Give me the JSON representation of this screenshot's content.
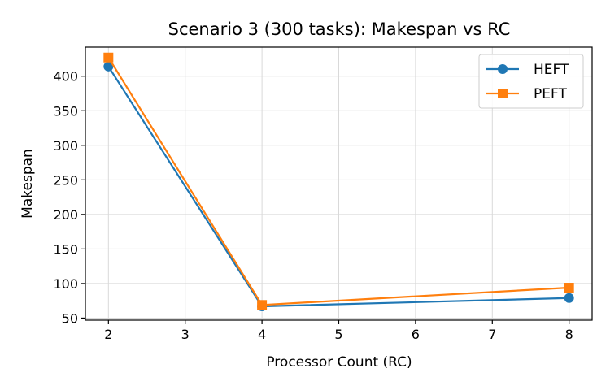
{
  "chart_data": {
    "type": "line",
    "title": "Scenario 3 (300 tasks): Makespan vs RC",
    "xlabel": "Processor Count (RC)",
    "ylabel": "Makespan",
    "xlim": [
      1.7,
      8.3
    ],
    "ylim": [
      47,
      442
    ],
    "xticks": [
      2,
      3,
      4,
      5,
      6,
      7,
      8
    ],
    "yticks": [
      50,
      100,
      150,
      200,
      250,
      300,
      350,
      400
    ],
    "grid": true,
    "legend_position": "top-right",
    "x": [
      2,
      4,
      8
    ],
    "series": [
      {
        "name": "HEFT",
        "marker": "circle",
        "color": "#1f77b4",
        "values": [
          414,
          67,
          79
        ]
      },
      {
        "name": "PEFT",
        "marker": "square",
        "color": "#ff7f0e",
        "values": [
          427,
          69,
          94
        ]
      }
    ]
  }
}
